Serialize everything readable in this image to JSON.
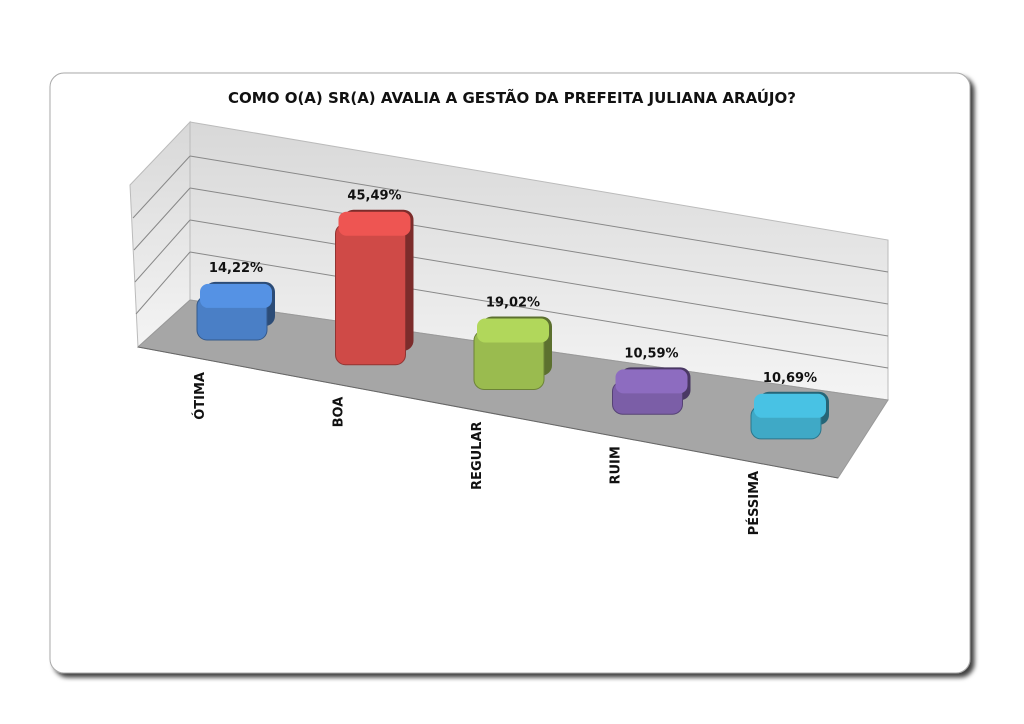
{
  "chart_data": {
    "type": "bar3d",
    "title": "COMO O(A) SR(A) AVALIA A GESTÃO DA PREFEITA JULIANA ARAÚJO?",
    "categories": [
      "ÓTIMA",
      "BOA",
      "REGULAR",
      "RUIM",
      "PÉSSIMA"
    ],
    "values": [
      14.22,
      45.49,
      19.02,
      10.59,
      10.69
    ],
    "value_labels": [
      "14,22%",
      "45,49%",
      "19,02%",
      "10,59%",
      "10,69%"
    ],
    "colors": [
      "#4a7fc6",
      "#cf4a47",
      "#9abb4f",
      "#7b5ea7",
      "#3fa9c6"
    ],
    "ylim": [
      0,
      50
    ]
  }
}
